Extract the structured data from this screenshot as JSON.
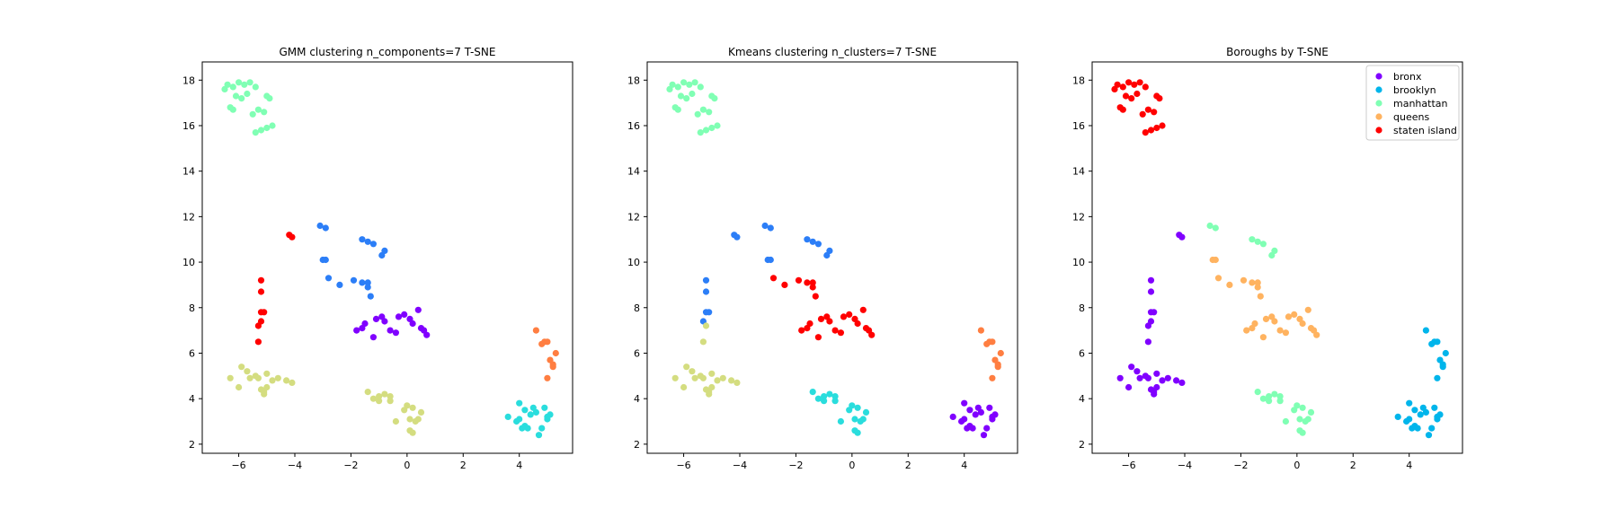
{
  "colors": {
    "c0": "#8000ff",
    "c1": "#2c7ef7",
    "c2": "#2adddd",
    "c3": "#80ffb4",
    "c4": "#d4dd80",
    "c5": "#ff7e41",
    "c6": "#ff0000",
    "bronx": "#8000ff",
    "brooklyn": "#00b5eb",
    "manhattan": "#80ffb4",
    "queens": "#ffb360",
    "staten_island": "#ff0000"
  },
  "chart_data": [
    {
      "type": "scatter",
      "title": "GMM clustering n_components=7 T-SNE",
      "xlim": [
        -7.3,
        5.9
      ],
      "ylim": [
        1.6,
        18.8
      ],
      "xticks": [
        -6,
        -4,
        -2,
        0,
        2,
        4
      ],
      "yticks": [
        2,
        4,
        6,
        8,
        10,
        12,
        14,
        16,
        18
      ],
      "grid": false,
      "series": [
        {
          "color_key": "c3",
          "x": [
            -6.5,
            -6.4,
            -6.2,
            -6.0,
            -5.8,
            -5.6,
            -5.4,
            -6.1,
            -5.9,
            -5.7,
            -5.3,
            -5.1,
            -5.0,
            -4.9,
            -4.8,
            -5.2,
            -5.4,
            -5.5,
            -6.3,
            -6.2,
            -5.0
          ],
          "y": [
            17.6,
            17.8,
            17.7,
            17.9,
            17.8,
            17.9,
            17.7,
            17.3,
            17.2,
            17.4,
            16.7,
            16.6,
            17.3,
            17.2,
            16.0,
            15.8,
            15.7,
            16.5,
            16.8,
            16.7,
            15.9
          ]
        },
        {
          "color_key": "c1",
          "x": [
            -3.1,
            -2.9,
            -3.0,
            -2.9,
            -2.8,
            -2.4,
            -1.9,
            -1.6,
            -1.4,
            -1.2,
            -1.6,
            -1.4,
            -1.4,
            -1.3,
            -0.9,
            -0.8
          ],
          "y": [
            11.6,
            11.5,
            10.1,
            10.1,
            9.3,
            9.0,
            9.2,
            11.0,
            10.9,
            10.8,
            9.1,
            9.1,
            8.9,
            8.5,
            10.3,
            10.5
          ]
        },
        {
          "color_key": "c6",
          "x": [
            -4.2,
            -4.1,
            -5.2,
            -5.2,
            -5.3,
            -5.2,
            -5.1,
            -5.2,
            -5.3
          ],
          "y": [
            11.2,
            11.1,
            9.2,
            8.7,
            7.2,
            7.4,
            7.8,
            7.8,
            6.5
          ]
        },
        {
          "color_key": "c0",
          "x": [
            -1.8,
            -1.6,
            -1.5,
            -1.1,
            -0.9,
            -0.8,
            -0.6,
            -0.3,
            -0.1,
            0.1,
            0.2,
            0.4,
            0.5,
            0.6,
            0.7,
            -0.4,
            -1.2
          ],
          "y": [
            7.0,
            7.1,
            7.3,
            7.5,
            7.6,
            7.4,
            7.0,
            7.6,
            7.7,
            7.5,
            7.3,
            7.9,
            7.1,
            7.0,
            6.8,
            6.9,
            6.7
          ]
        },
        {
          "color_key": "c4",
          "x": [
            -6.3,
            -6.0,
            -5.9,
            -5.7,
            -5.4,
            -5.2,
            -5.1,
            -5.0,
            -4.8,
            -4.6,
            -4.3,
            -4.1,
            -5.0,
            -5.1,
            -5.3,
            -5.6
          ],
          "y": [
            4.9,
            4.5,
            5.4,
            5.2,
            5.0,
            4.4,
            4.3,
            4.5,
            4.8,
            4.9,
            4.8,
            4.7,
            5.1,
            4.2,
            4.9,
            4.9
          ]
        },
        {
          "color_key": "c4",
          "x": [
            -1.4,
            -1.2,
            -1.0,
            -0.8,
            -0.6,
            -0.4,
            -0.1,
            0.0,
            0.2,
            0.4,
            0.5,
            0.1,
            0.2,
            0.1,
            0.3,
            -0.6,
            -1.0
          ],
          "y": [
            4.3,
            4.0,
            3.9,
            4.2,
            3.9,
            3.0,
            3.5,
            3.7,
            3.6,
            3.1,
            3.4,
            3.1,
            2.5,
            2.6,
            3.0,
            4.1,
            4.1
          ]
        },
        {
          "color_key": "c2",
          "x": [
            3.6,
            3.9,
            4.0,
            4.1,
            4.2,
            4.3,
            4.4,
            4.5,
            4.7,
            4.8,
            4.9,
            5.0,
            5.1,
            5.0,
            4.6,
            4.2
          ],
          "y": [
            3.2,
            3.0,
            3.1,
            2.7,
            3.5,
            2.7,
            3.3,
            3.6,
            2.4,
            2.7,
            3.6,
            3.1,
            3.3,
            3.2,
            3.4,
            2.8
          ]
        },
        {
          "color_key": "c2",
          "x": [
            4.0
          ],
          "y": [
            3.8
          ]
        },
        {
          "color_key": "c5",
          "x": [
            4.6,
            4.8,
            4.9,
            5.0,
            5.1,
            5.2,
            5.2,
            5.3,
            5.0
          ],
          "y": [
            7.0,
            6.4,
            6.5,
            6.5,
            5.7,
            5.5,
            5.4,
            6.0,
            4.9
          ]
        }
      ]
    },
    {
      "type": "scatter",
      "title": "Kmeans clustering n_clusters=7 T-SNE",
      "xlim": [
        -7.3,
        5.9
      ],
      "ylim": [
        1.6,
        18.8
      ],
      "xticks": [
        -6,
        -4,
        -2,
        0,
        2,
        4
      ],
      "yticks": [
        2,
        4,
        6,
        8,
        10,
        12,
        14,
        16,
        18
      ],
      "grid": false,
      "series": [
        {
          "color_key": "c3",
          "x": [
            -6.5,
            -6.4,
            -6.2,
            -6.0,
            -5.8,
            -5.6,
            -5.4,
            -6.1,
            -5.9,
            -5.7,
            -5.3,
            -5.1,
            -5.0,
            -4.9,
            -4.8,
            -5.2,
            -5.4,
            -5.5,
            -6.3,
            -6.2,
            -5.0
          ],
          "y": [
            17.6,
            17.8,
            17.7,
            17.9,
            17.8,
            17.9,
            17.7,
            17.3,
            17.2,
            17.4,
            16.7,
            16.6,
            17.3,
            17.2,
            16.0,
            15.8,
            15.7,
            16.5,
            16.8,
            16.7,
            15.9
          ]
        },
        {
          "color_key": "c1",
          "x": [
            -3.1,
            -2.9,
            -3.0,
            -2.9,
            -1.6,
            -1.4,
            -1.2,
            -0.9,
            -0.8,
            -4.2,
            -4.1,
            -5.2,
            -5.2,
            -5.1,
            -5.2,
            -5.3
          ],
          "y": [
            11.6,
            11.5,
            10.1,
            10.1,
            11.0,
            10.9,
            10.8,
            10.3,
            10.5,
            11.2,
            11.1,
            9.2,
            8.7,
            7.8,
            7.8,
            7.4
          ]
        },
        {
          "color_key": "c6",
          "x": [
            -2.8,
            -2.4,
            -1.9,
            -1.6,
            -1.4,
            -1.4,
            -1.3,
            -1.8,
            -1.6,
            -1.5,
            -1.1,
            -0.9,
            -0.8,
            -0.6,
            -0.3,
            -0.1,
            0.1,
            0.2,
            0.4,
            0.5,
            0.6,
            0.7,
            -0.4,
            -1.2
          ],
          "y": [
            9.3,
            9.0,
            9.2,
            9.1,
            9.1,
            8.9,
            8.5,
            7.0,
            7.1,
            7.3,
            7.5,
            7.6,
            7.4,
            7.0,
            7.6,
            7.7,
            7.5,
            7.3,
            7.9,
            7.1,
            7.0,
            6.8,
            6.9,
            6.7
          ]
        },
        {
          "color_key": "c4",
          "x": [
            -6.3,
            -6.0,
            -5.9,
            -5.7,
            -5.4,
            -5.2,
            -5.1,
            -5.0,
            -4.8,
            -4.6,
            -4.3,
            -4.1,
            -5.0,
            -5.1,
            -5.3,
            -5.6,
            -5.2,
            -5.3
          ],
          "y": [
            4.9,
            4.5,
            5.4,
            5.2,
            5.0,
            4.4,
            4.3,
            4.5,
            4.8,
            4.9,
            4.8,
            4.7,
            5.1,
            4.2,
            4.9,
            4.9,
            7.2,
            6.5
          ]
        },
        {
          "color_key": "c2",
          "x": [
            -1.4,
            -1.2,
            -1.0,
            -0.8,
            -0.6,
            -0.4,
            -0.1,
            0.0,
            0.2,
            0.4,
            0.5,
            0.1,
            0.2,
            0.1,
            0.3,
            -0.6,
            -1.0
          ],
          "y": [
            4.3,
            4.0,
            3.9,
            4.2,
            3.9,
            3.0,
            3.5,
            3.7,
            3.6,
            3.1,
            3.4,
            3.1,
            2.5,
            2.6,
            3.0,
            4.1,
            4.1
          ]
        },
        {
          "color_key": "c0",
          "x": [
            3.6,
            3.9,
            4.0,
            4.1,
            4.2,
            4.3,
            4.4,
            4.5,
            4.7,
            4.8,
            4.9,
            5.0,
            5.1,
            5.0,
            4.6,
            4.2,
            4.0
          ],
          "y": [
            3.2,
            3.0,
            3.1,
            2.7,
            3.5,
            2.7,
            3.3,
            3.6,
            2.4,
            2.7,
            3.6,
            3.1,
            3.3,
            3.2,
            3.4,
            2.8,
            3.8
          ]
        },
        {
          "color_key": "c5",
          "x": [
            4.6,
            4.8,
            4.9,
            5.0,
            5.1,
            5.2,
            5.2,
            5.3,
            5.0
          ],
          "y": [
            7.0,
            6.4,
            6.5,
            6.5,
            5.7,
            5.5,
            5.4,
            6.0,
            4.9
          ]
        }
      ]
    },
    {
      "type": "scatter",
      "title": "Boroughs by T-SNE",
      "xlim": [
        -7.3,
        5.9
      ],
      "ylim": [
        1.6,
        18.8
      ],
      "xticks": [
        -6,
        -4,
        -2,
        0,
        2,
        4
      ],
      "yticks": [
        2,
        4,
        6,
        8,
        10,
        12,
        14,
        16,
        18
      ],
      "grid": false,
      "legend_position": "top-right",
      "series": [
        {
          "name": "bronx",
          "color_key": "bronx",
          "x": [
            -4.2,
            -4.1,
            -5.2,
            -5.2,
            -5.3,
            -5.2,
            -5.1,
            -5.2,
            -5.3,
            -6.3,
            -6.0,
            -5.9,
            -5.7,
            -5.4,
            -5.2,
            -5.1,
            -5.0,
            -4.8,
            -4.6,
            -4.3,
            -4.1,
            -5.0,
            -5.1,
            -5.3,
            -5.6
          ],
          "y": [
            11.2,
            11.1,
            9.2,
            8.7,
            7.2,
            7.4,
            7.8,
            7.8,
            6.5,
            4.9,
            4.5,
            5.4,
            5.2,
            5.0,
            4.4,
            4.3,
            4.5,
            4.8,
            4.9,
            4.8,
            4.7,
            5.1,
            4.2,
            4.9,
            4.9
          ]
        },
        {
          "name": "brooklyn",
          "color_key": "brooklyn",
          "x": [
            3.6,
            3.9,
            4.0,
            4.1,
            4.2,
            4.3,
            4.4,
            4.5,
            4.7,
            4.8,
            4.9,
            5.0,
            5.1,
            5.0,
            4.6,
            4.2,
            4.0,
            4.6,
            4.8,
            4.9,
            5.0,
            5.1,
            5.2,
            5.2,
            5.3,
            5.0
          ],
          "y": [
            3.2,
            3.0,
            3.1,
            2.7,
            3.5,
            2.7,
            3.3,
            3.6,
            2.4,
            2.7,
            3.6,
            3.1,
            3.3,
            3.2,
            3.4,
            2.8,
            3.8,
            7.0,
            6.4,
            6.5,
            6.5,
            5.7,
            5.5,
            5.4,
            6.0,
            4.9
          ]
        },
        {
          "name": "manhattan",
          "color_key": "manhattan",
          "x": [
            -3.1,
            -2.9,
            -1.6,
            -1.4,
            -1.2,
            -0.9,
            -0.8,
            -1.4,
            -1.2,
            -1.0,
            -0.8,
            -0.6,
            -0.4,
            -0.1,
            0.0,
            0.2,
            0.4,
            0.5,
            0.1,
            0.2,
            0.1,
            0.3,
            -0.6,
            -1.0
          ],
          "y": [
            11.6,
            11.5,
            11.0,
            10.9,
            10.8,
            10.3,
            10.5,
            4.3,
            4.0,
            3.9,
            4.2,
            3.9,
            3.0,
            3.5,
            3.7,
            3.6,
            3.1,
            3.4,
            3.1,
            2.5,
            2.6,
            3.0,
            4.1,
            4.1
          ]
        },
        {
          "name": "queens",
          "color_key": "queens",
          "x": [
            -3.0,
            -2.9,
            -2.8,
            -2.4,
            -1.9,
            -1.6,
            -1.4,
            -1.4,
            -1.3,
            -1.8,
            -1.6,
            -1.5,
            -1.1,
            -0.9,
            -0.8,
            -0.6,
            -0.3,
            -0.1,
            0.1,
            0.2,
            0.4,
            0.5,
            0.6,
            0.7,
            -0.4,
            -1.2
          ],
          "y": [
            10.1,
            10.1,
            9.3,
            9.0,
            9.2,
            9.1,
            9.1,
            8.9,
            8.5,
            7.0,
            7.1,
            7.3,
            7.5,
            7.6,
            7.4,
            7.0,
            7.6,
            7.7,
            7.5,
            7.3,
            7.9,
            7.1,
            7.0,
            6.8,
            6.9,
            6.7
          ]
        },
        {
          "name": "staten island",
          "color_key": "staten_island",
          "x": [
            -6.5,
            -6.4,
            -6.2,
            -6.0,
            -5.8,
            -5.6,
            -5.4,
            -6.1,
            -5.9,
            -5.7,
            -5.3,
            -5.1,
            -5.0,
            -4.9,
            -4.8,
            -5.2,
            -5.4,
            -5.5,
            -6.3,
            -6.2,
            -5.0
          ],
          "y": [
            17.6,
            17.8,
            17.7,
            17.9,
            17.8,
            17.9,
            17.7,
            17.3,
            17.2,
            17.4,
            16.7,
            16.6,
            17.3,
            17.2,
            16.0,
            15.8,
            15.7,
            16.5,
            16.8,
            16.7,
            15.9
          ]
        }
      ]
    }
  ]
}
